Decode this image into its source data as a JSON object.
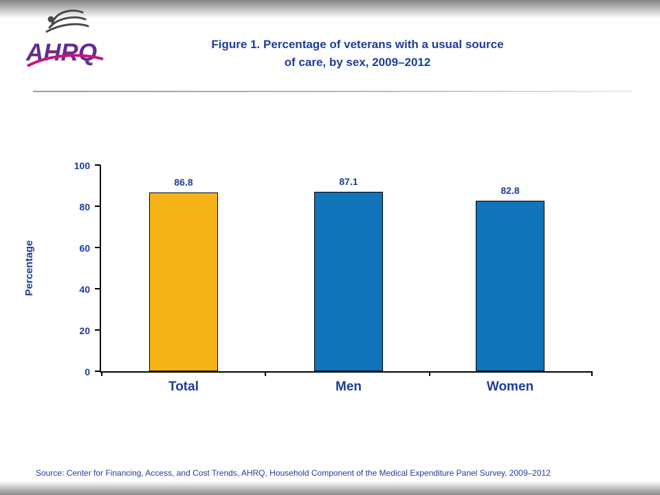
{
  "header": {
    "title_line1": "Figure 1. Percentage of veterans with a usual source",
    "title_line2": "of care, by sex, 2009–2012",
    "logo_text": "AHRQ"
  },
  "footer": {
    "source": "Source: Center for Financing, Access, and Cost Trends, AHRQ, Household Component of the Medical Expenditure Panel Survey, 2009–2012"
  },
  "chart_data": {
    "type": "bar",
    "title": "Figure 1. Percentage of veterans with a usual source of care, by sex, 2009–2012",
    "categories": [
      "Total",
      "Men",
      "Women"
    ],
    "values": [
      86.8,
      87.1,
      82.8
    ],
    "value_labels": [
      "86.8",
      "87.1",
      "82.8"
    ],
    "bar_colors": [
      "#F5B317",
      "#1274BB",
      "#1274BB"
    ],
    "xlabel": "",
    "ylabel": "Percentage",
    "ylim": [
      0,
      100
    ],
    "yticks": [
      0,
      20,
      40,
      60,
      80,
      100
    ],
    "grid": false,
    "legend": "none"
  },
  "colors": {
    "accent_text": "#1E3D99",
    "logo_purple": "#662D91",
    "logo_swoosh": "#C4157F",
    "eagle_gray": "#4A4A4A",
    "bar_border": "#000000"
  }
}
